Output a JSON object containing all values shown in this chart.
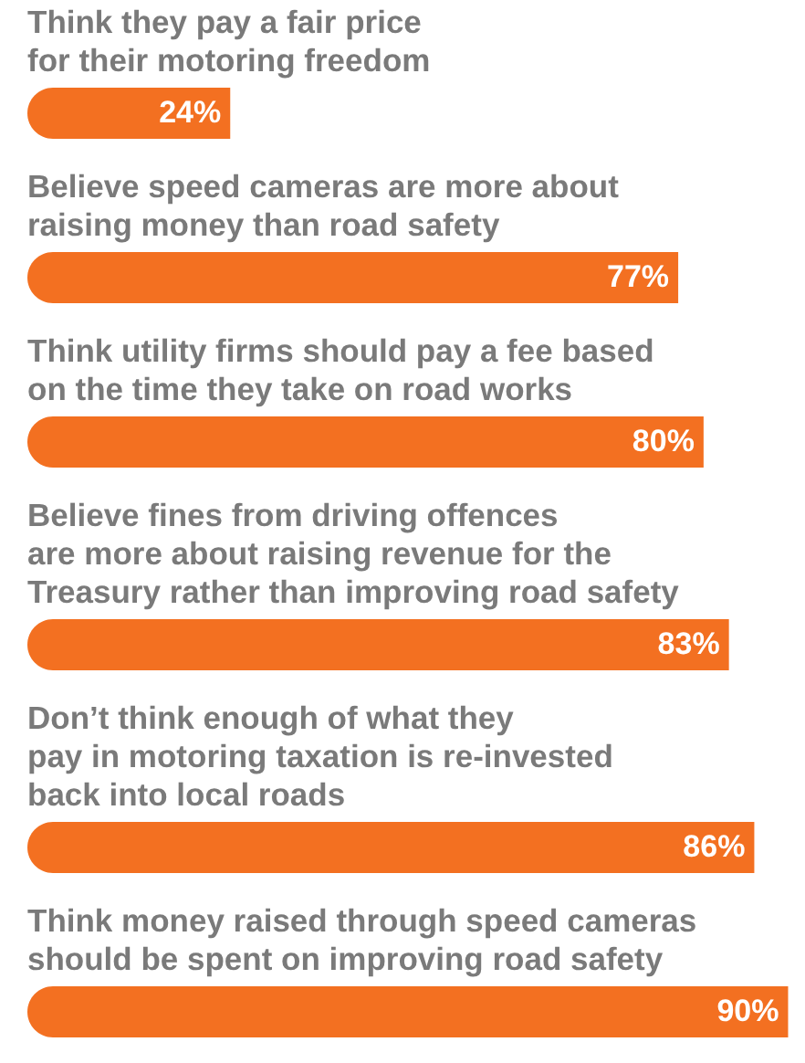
{
  "chart_data": {
    "type": "bar",
    "orientation": "horizontal",
    "categories": [
      "Think they pay a fair price\nfor their motoring freedom",
      "Believe speed cameras are more about\nraising money than road safety",
      "Think utility firms should pay a fee based\non the time they take on road works",
      "Believe fines from driving offences\nare more about raising revenue for the\nTreasury rather than improving road safety",
      "Don’t think enough of what they\npay in motoring taxation is re-invested\nback into local roads",
      "Think money raised through speed cameras\nshould be spent on improving road safety"
    ],
    "values": [
      24,
      77,
      80,
      83,
      86,
      90
    ],
    "value_labels": [
      "24%",
      "77%",
      "80%",
      "83%",
      "86%",
      "90%"
    ],
    "color": "#f37021",
    "xlim": [
      0,
      92
    ]
  }
}
